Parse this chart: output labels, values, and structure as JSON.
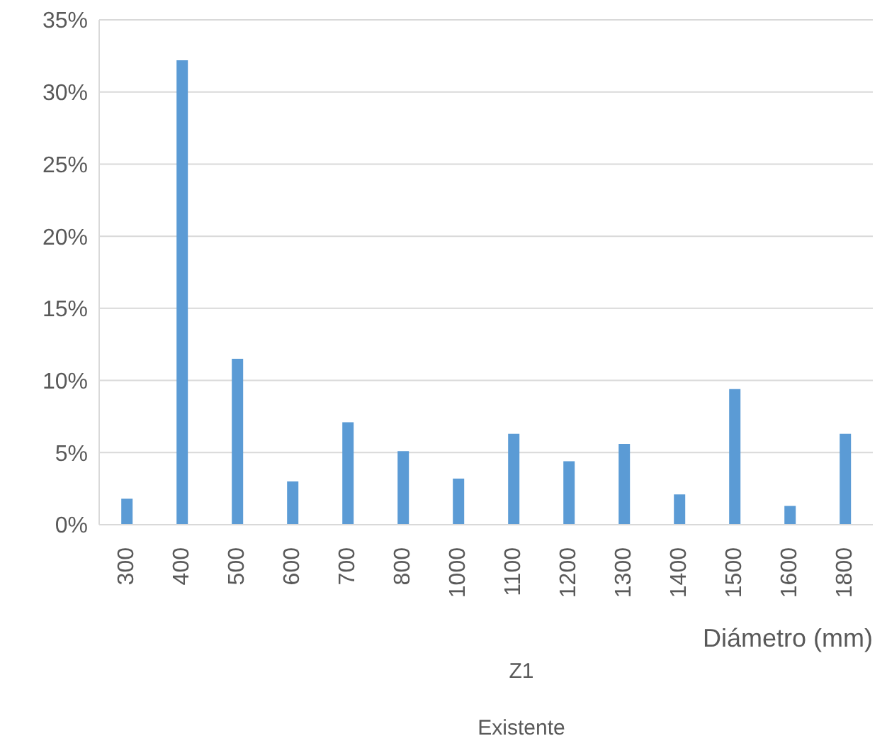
{
  "chart_data": {
    "type": "bar",
    "xlabel": "Diámetro (mm)",
    "annotations": [
      "Z1",
      "Existente"
    ],
    "categories": [
      "300",
      "400",
      "500",
      "600",
      "700",
      "800",
      "1000",
      "1100",
      "1200",
      "1300",
      "1400",
      "1500",
      "1600",
      "1800"
    ],
    "values": [
      1.8,
      32.2,
      11.5,
      3.0,
      7.1,
      5.1,
      3.2,
      6.3,
      4.4,
      5.6,
      2.1,
      9.4,
      1.3,
      6.3
    ],
    "color": "#5b9bd5",
    "ylim": [
      0,
      35
    ],
    "yticks": [
      {
        "value": 0,
        "label": "0%"
      },
      {
        "value": 5,
        "label": "5%"
      },
      {
        "value": 10,
        "label": "10%"
      },
      {
        "value": 15,
        "label": "15%"
      },
      {
        "value": 20,
        "label": "20%"
      },
      {
        "value": 25,
        "label": "25%"
      },
      {
        "value": 30,
        "label": "30%"
      },
      {
        "value": 35,
        "label": "35%"
      }
    ],
    "grid": "y",
    "legend": false
  }
}
